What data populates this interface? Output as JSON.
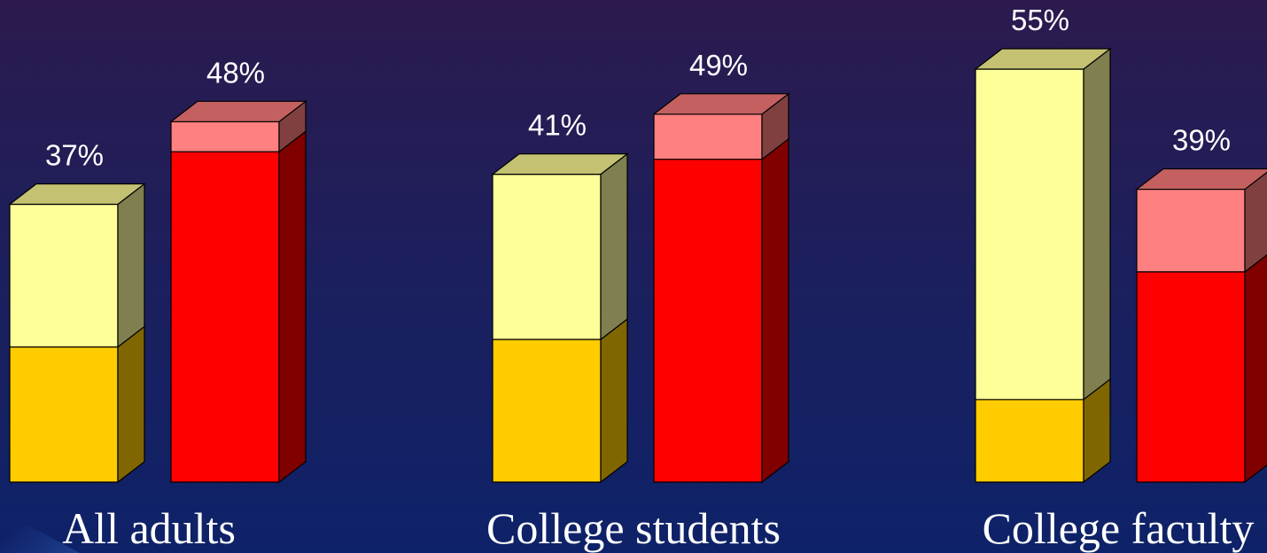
{
  "chart_data": {
    "type": "bar",
    "title": "",
    "xlabel": "",
    "ylabel": "",
    "ylim": [
      0,
      60
    ],
    "grid": false,
    "categories": [
      "All adults",
      "College students",
      "College faculty"
    ],
    "series": [
      {
        "values": [
          37,
          41,
          55
        ],
        "stack_lower": [
          18,
          19,
          11
        ],
        "colors": {
          "upper": "#ffff99",
          "lower": "#ffcc00",
          "top": "#c4c173",
          "side_upper": "#7f7f4f",
          "side_lower": "#7f6600"
        }
      },
      {
        "values": [
          48,
          49,
          39
        ],
        "stack_lower": [
          44,
          43,
          28
        ],
        "colors": {
          "upper": "#ff8080",
          "lower": "#ff0000",
          "top": "#c46060",
          "side_upper": "#804040",
          "side_lower": "#800000"
        }
      }
    ],
    "value_labels": [
      [
        "37%",
        "41%",
        "55%"
      ],
      [
        "48%",
        "49%",
        "39%"
      ]
    ]
  }
}
